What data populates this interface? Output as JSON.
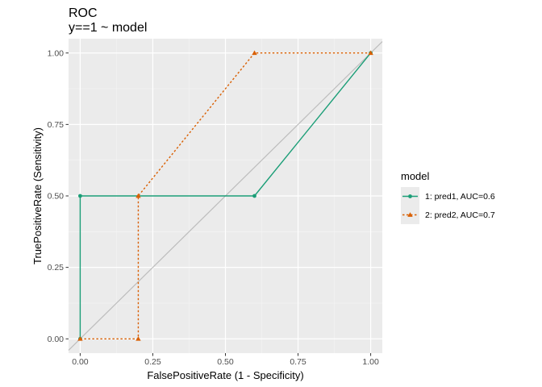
{
  "chart_data": {
    "type": "line",
    "title": "ROC",
    "subtitle": "y==1 ~ model",
    "xlabel": "FalsePositiveRate (1 - Specificity)",
    "ylabel": "TruePositiveRate (Sensitivity)",
    "xlim": [
      -0.04,
      1.04
    ],
    "ylim": [
      -0.05,
      1.05
    ],
    "x_ticks": [
      "0.00",
      "0.25",
      "0.50",
      "0.75",
      "1.00"
    ],
    "y_ticks": [
      "0.00",
      "0.25",
      "0.50",
      "0.75",
      "1.00"
    ],
    "grid": true,
    "reference_line": {
      "x": [
        -0.04,
        1.04
      ],
      "y": [
        -0.04,
        1.04
      ],
      "color": "#bdbdbd"
    },
    "legend": {
      "title": "model",
      "placement": "right"
    },
    "series": [
      {
        "name": "1: pred1, AUC=0.6",
        "color": "#1b9e77",
        "linestyle": "solid",
        "marker": "circle",
        "x": [
          0.0,
          0.0,
          0.6,
          1.0
        ],
        "y": [
          0.0,
          0.5,
          0.5,
          1.0
        ]
      },
      {
        "name": "2: pred2, AUC=0.7",
        "color": "#d95f02",
        "linestyle": "dotted",
        "marker": "triangle",
        "x": [
          0.0,
          0.2,
          0.2,
          0.6,
          1.0
        ],
        "y": [
          0.0,
          0.0,
          0.5,
          1.0,
          1.0
        ]
      }
    ]
  }
}
